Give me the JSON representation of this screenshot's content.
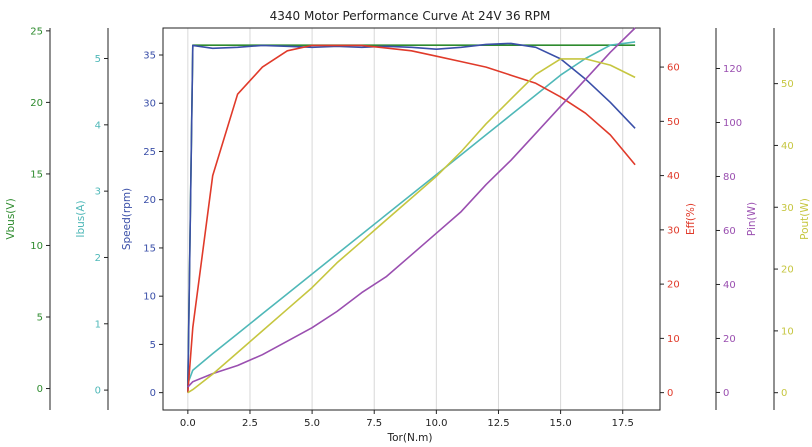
{
  "chart_data": {
    "type": "line",
    "title": "4340 Motor Performance Curve At 24V 36 RPM",
    "xlabel": "Tor(N.m)",
    "xlim": [
      -1,
      19
    ],
    "x_ticks": [
      0.0,
      2.5,
      5.0,
      7.5,
      10.0,
      12.5,
      15.0,
      17.5
    ],
    "x_tick_labels": [
      "0.0",
      "2.5",
      "5.0",
      "7.5",
      "10.0",
      "12.5",
      "15.0",
      "17.5"
    ],
    "grid": "vertical",
    "x": [
      0,
      0.2,
      1,
      2,
      3,
      4,
      5,
      6,
      7,
      8,
      9,
      10,
      11,
      12,
      13,
      14,
      15,
      16,
      17,
      18
    ],
    "axes": [
      {
        "id": "vbus",
        "label": "Vbus(V)",
        "color": "#2e8b2e",
        "side": "left",
        "lim": [
          -1.5,
          25.2
        ],
        "ticks": [
          0,
          5,
          10,
          15,
          20,
          25
        ]
      },
      {
        "id": "ibus",
        "label": "Ibus(A)",
        "color": "#4fb8b8",
        "side": "left",
        "lim": [
          -0.3,
          5.46
        ],
        "ticks": [
          0,
          1,
          2,
          3,
          4,
          5
        ]
      },
      {
        "id": "speed",
        "label": "Speed(rpm)",
        "color": "#3a4fa8",
        "side": "left",
        "lim": [
          -1.8,
          37.8
        ],
        "ticks": [
          0,
          5,
          10,
          15,
          20,
          25,
          30,
          35
        ]
      },
      {
        "id": "eff",
        "label": "Eff(%)",
        "color": "#e03a2a",
        "side": "right",
        "lim": [
          -3.2,
          67.2
        ],
        "ticks": [
          0,
          10,
          20,
          30,
          40,
          50,
          60
        ]
      },
      {
        "id": "pin",
        "label": "Pin(W)",
        "color": "#9a4fb0",
        "side": "right",
        "lim": [
          -6.5,
          135
        ],
        "ticks": [
          0,
          20,
          40,
          60,
          80,
          100,
          120
        ]
      },
      {
        "id": "pout",
        "label": "Pout(W)",
        "color": "#c6c640",
        "side": "right",
        "lim": [
          -2.8,
          59
        ],
        "ticks": [
          0,
          10,
          20,
          30,
          40,
          50
        ]
      }
    ],
    "series": [
      {
        "axis": "vbus",
        "color": "#2e8b2e",
        "values": [
          0,
          24,
          24,
          24,
          24,
          24,
          24,
          24,
          24,
          24,
          24,
          24,
          24,
          24,
          24,
          24,
          24,
          24,
          24,
          24
        ]
      },
      {
        "axis": "ibus",
        "color": "#4fb8b8",
        "values": [
          0.1,
          0.3,
          0.55,
          0.85,
          1.15,
          1.45,
          1.75,
          2.05,
          2.35,
          2.65,
          2.95,
          3.25,
          3.55,
          3.85,
          4.15,
          4.45,
          4.75,
          5.0,
          5.2,
          5.25
        ]
      },
      {
        "axis": "speed",
        "color": "#3a4fa8",
        "values": [
          0,
          36,
          35.7,
          35.8,
          36,
          35.9,
          35.8,
          35.9,
          35.8,
          35.9,
          35.8,
          35.6,
          35.8,
          36.1,
          36.2,
          35.8,
          34.6,
          32.5,
          30.1,
          27.4
        ]
      },
      {
        "axis": "eff",
        "color": "#e03a2a",
        "values": [
          0,
          12,
          40,
          55,
          60,
          63,
          64,
          64,
          64,
          63.5,
          63,
          62,
          61,
          60,
          58.5,
          57,
          54.5,
          51.5,
          47.5,
          42
        ]
      },
      {
        "axis": "pin",
        "color": "#9a4fb0",
        "values": [
          2,
          4,
          7,
          10,
          14,
          19,
          24,
          30,
          37,
          43,
          51,
          59,
          67,
          77,
          86,
          96,
          106,
          116,
          126,
          135
        ]
      },
      {
        "axis": "pout",
        "color": "#c6c640",
        "values": [
          0,
          0.5,
          3,
          6.5,
          10,
          13.5,
          17,
          21,
          24.5,
          28,
          31.5,
          35,
          39,
          43.5,
          47.5,
          51.5,
          54,
          54,
          53,
          51
        ]
      }
    ]
  }
}
